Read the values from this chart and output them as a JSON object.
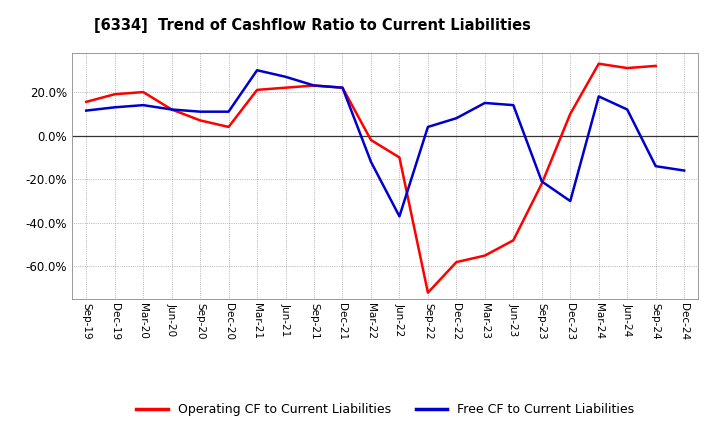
{
  "title": "[6334]  Trend of Cashflow Ratio to Current Liabilities",
  "x_labels": [
    "Sep-19",
    "Dec-19",
    "Mar-20",
    "Jun-20",
    "Sep-20",
    "Dec-20",
    "Mar-21",
    "Jun-21",
    "Sep-21",
    "Dec-21",
    "Mar-22",
    "Jun-22",
    "Sep-22",
    "Dec-22",
    "Mar-23",
    "Jun-23",
    "Sep-23",
    "Dec-23",
    "Mar-24",
    "Jun-24",
    "Sep-24",
    "Dec-24"
  ],
  "operating_cf": [
    0.155,
    0.19,
    0.2,
    0.12,
    0.07,
    0.04,
    0.21,
    0.22,
    0.23,
    0.22,
    -0.02,
    -0.1,
    -0.72,
    -0.58,
    -0.55,
    -0.48,
    -0.22,
    0.1,
    0.33,
    0.31,
    0.32,
    null
  ],
  "free_cf": [
    0.115,
    0.13,
    0.14,
    0.12,
    0.11,
    0.11,
    0.3,
    0.27,
    0.23,
    0.22,
    -0.12,
    -0.37,
    0.04,
    0.08,
    0.15,
    0.14,
    -0.21,
    -0.3,
    0.18,
    0.12,
    -0.14,
    -0.16
  ],
  "operating_color": "#FF0000",
  "free_color": "#0000CC",
  "background_color": "#FFFFFF",
  "plot_bg_color": "#FFFFFF",
  "grid_color": "#888888",
  "ylim": [
    -0.75,
    0.38
  ],
  "yticks": [
    -0.6,
    -0.4,
    -0.2,
    0.0,
    0.2
  ],
  "legend_labels": [
    "Operating CF to Current Liabilities",
    "Free CF to Current Liabilities"
  ]
}
